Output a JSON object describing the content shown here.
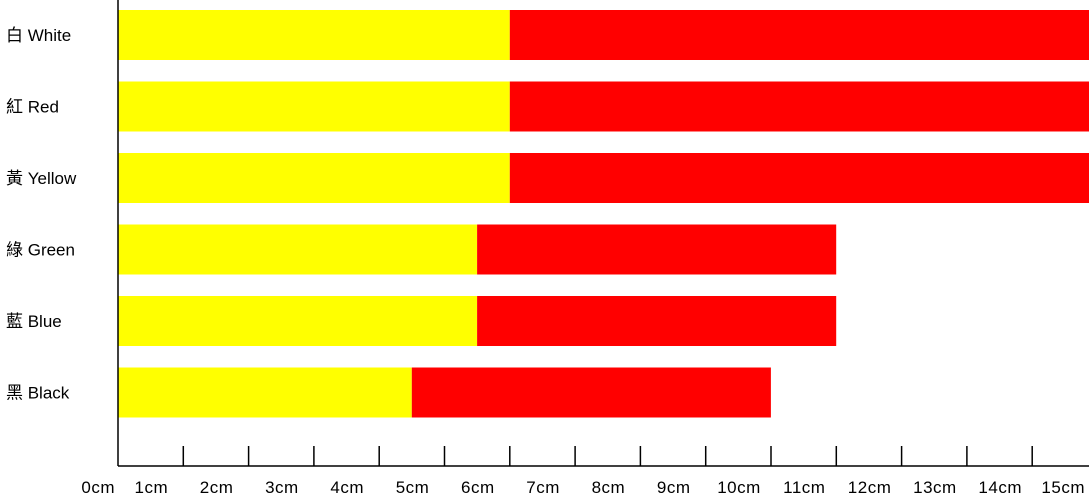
{
  "chart_data": {
    "type": "bar",
    "orientation": "horizontal",
    "stacked": true,
    "categories": [
      "白 White",
      "紅 Red",
      "黃 Yellow",
      "綠 Green",
      "藍 Blue",
      "黑 Black"
    ],
    "series": [
      {
        "color": "#ffff00",
        "values": [
          6,
          6,
          6,
          5.5,
          5.5,
          4.5
        ]
      },
      {
        "color": "#ff0000",
        "values": [
          9,
          9,
          9,
          5.5,
          5.5,
          5.5
        ]
      }
    ],
    "xticks": [
      "0cm",
      "1cm",
      "2cm",
      "3cm",
      "4cm",
      "5cm",
      "6cm",
      "7cm",
      "8cm",
      "9cm",
      "10cm",
      "11cm",
      "12cm",
      "13cm",
      "14cm",
      "15cm"
    ],
    "xlim": [
      0,
      15
    ],
    "grid": false,
    "legend": false,
    "title": "",
    "xlabel": "",
    "ylabel": ""
  }
}
